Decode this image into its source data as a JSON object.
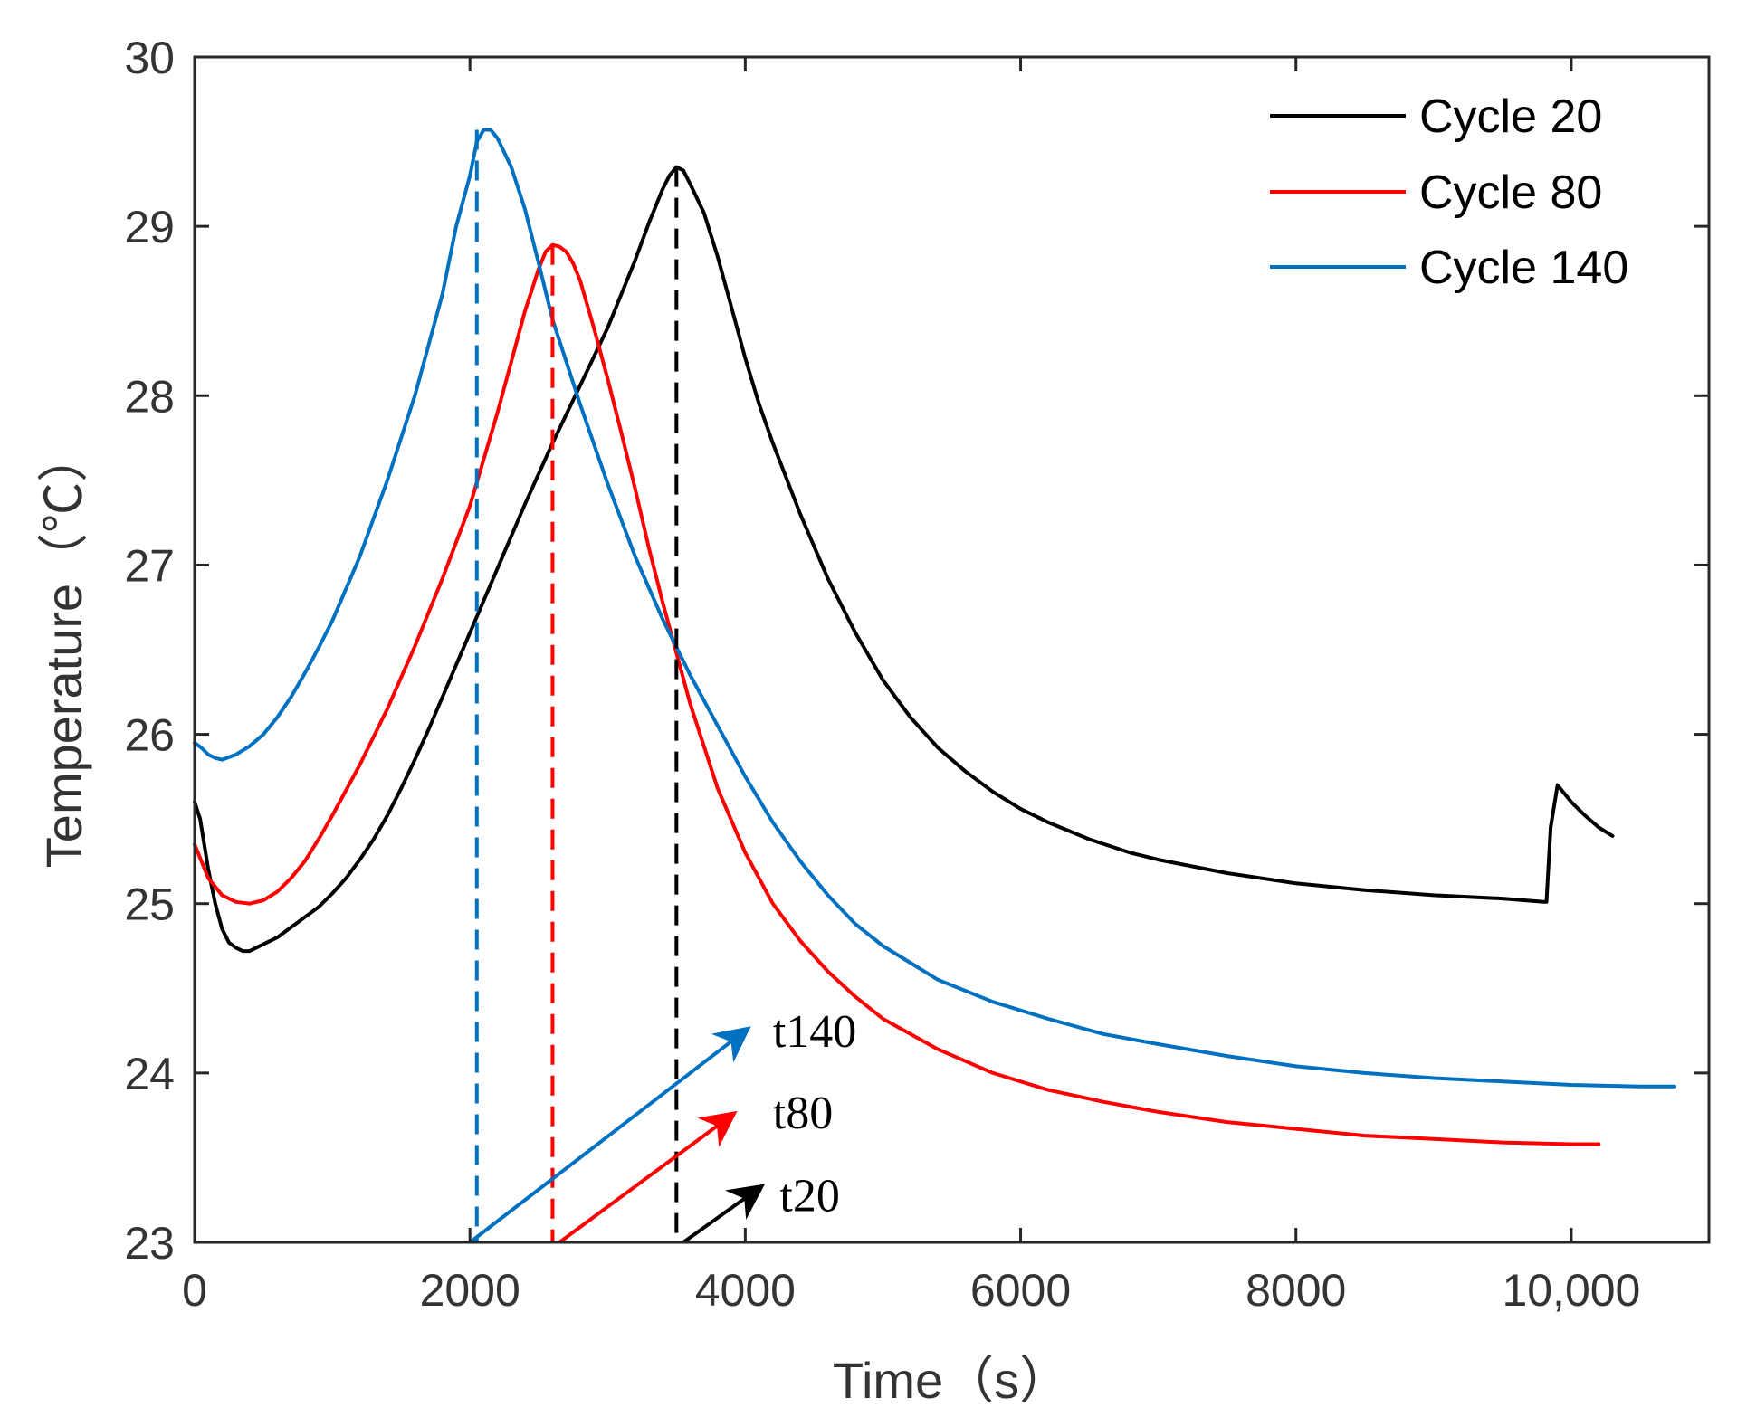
{
  "chart_data": {
    "type": "line",
    "title": "",
    "xlabel": "Time（s）",
    "ylabel": "Temperature（℃）",
    "xlim": [
      0,
      11000
    ],
    "ylim": [
      23,
      30
    ],
    "xticks": [
      0,
      2000,
      4000,
      6000,
      8000,
      10000
    ],
    "xtick_labels": [
      "0",
      "2000",
      "4000",
      "6000",
      "8000",
      "10,000"
    ],
    "yticks": [
      23,
      24,
      25,
      26,
      27,
      28,
      29,
      30
    ],
    "ytick_labels": [
      "23",
      "24",
      "25",
      "26",
      "27",
      "28",
      "29",
      "30"
    ],
    "grid": false,
    "legend_position": "top-right",
    "series": [
      {
        "name": "Cycle 20",
        "color": "#000000",
        "x": [
          0,
          40,
          100,
          150,
          200,
          250,
          300,
          350,
          400,
          500,
          600,
          700,
          800,
          900,
          1000,
          1100,
          1200,
          1300,
          1400,
          1500,
          1600,
          1700,
          1800,
          1900,
          2000,
          2200,
          2400,
          2600,
          2800,
          3000,
          3200,
          3300,
          3400,
          3450,
          3500,
          3550,
          3600,
          3700,
          3800,
          3900,
          4000,
          4100,
          4200,
          4400,
          4600,
          4800,
          5000,
          5200,
          5400,
          5600,
          5800,
          6000,
          6200,
          6500,
          6800,
          7000,
          7500,
          8000,
          8500,
          9000,
          9500,
          9800,
          9820,
          9850,
          9900,
          10000,
          10100,
          10200,
          10300
        ],
        "values": [
          25.6,
          25.5,
          25.2,
          25.0,
          24.85,
          24.77,
          24.74,
          24.72,
          24.72,
          24.76,
          24.8,
          24.86,
          24.92,
          24.98,
          25.06,
          25.15,
          25.26,
          25.38,
          25.52,
          25.68,
          25.85,
          26.03,
          26.22,
          26.41,
          26.6,
          26.98,
          27.36,
          27.72,
          28.06,
          28.4,
          28.8,
          29.02,
          29.22,
          29.3,
          29.35,
          29.33,
          29.25,
          29.08,
          28.82,
          28.52,
          28.22,
          27.95,
          27.72,
          27.3,
          26.92,
          26.6,
          26.32,
          26.1,
          25.92,
          25.78,
          25.66,
          25.56,
          25.48,
          25.38,
          25.3,
          25.26,
          25.18,
          25.12,
          25.08,
          25.05,
          25.03,
          25.01,
          25.01,
          25.45,
          25.7,
          25.6,
          25.52,
          25.45,
          25.4
        ]
      },
      {
        "name": "Cycle 80",
        "color": "#ff0000",
        "x": [
          0,
          50,
          100,
          200,
          300,
          400,
          500,
          600,
          700,
          800,
          900,
          1000,
          1200,
          1400,
          1600,
          1800,
          2000,
          2200,
          2300,
          2400,
          2500,
          2550,
          2600,
          2650,
          2700,
          2750,
          2800,
          2900,
          3000,
          3100,
          3200,
          3300,
          3400,
          3600,
          3800,
          4000,
          4200,
          4400,
          4600,
          4800,
          5000,
          5400,
          5800,
          6200,
          6600,
          7000,
          7500,
          8000,
          8500,
          9000,
          9500,
          10000,
          10200
        ],
        "values": [
          25.35,
          25.25,
          25.15,
          25.05,
          25.01,
          25.0,
          25.02,
          25.07,
          25.15,
          25.25,
          25.38,
          25.52,
          25.82,
          26.15,
          26.52,
          26.92,
          27.35,
          27.9,
          28.2,
          28.5,
          28.75,
          28.85,
          28.89,
          28.88,
          28.85,
          28.78,
          28.68,
          28.4,
          28.1,
          27.78,
          27.45,
          27.1,
          26.78,
          26.18,
          25.68,
          25.3,
          25.0,
          24.78,
          24.6,
          24.45,
          24.32,
          24.14,
          24.0,
          23.9,
          23.83,
          23.77,
          23.71,
          23.67,
          23.63,
          23.61,
          23.59,
          23.58,
          23.58
        ]
      },
      {
        "name": "Cycle 140",
        "color": "#0070c0",
        "x": [
          0,
          50,
          100,
          150,
          200,
          300,
          400,
          500,
          600,
          700,
          800,
          900,
          1000,
          1200,
          1400,
          1600,
          1800,
          1900,
          2000,
          2050,
          2100,
          2150,
          2200,
          2300,
          2400,
          2500,
          2600,
          2800,
          3000,
          3200,
          3400,
          3600,
          3800,
          4000,
          4200,
          4400,
          4600,
          4800,
          5000,
          5400,
          5800,
          6200,
          6600,
          7000,
          7500,
          8000,
          8500,
          9000,
          9500,
          10000,
          10500,
          10750
        ],
        "values": [
          25.95,
          25.92,
          25.88,
          25.86,
          25.85,
          25.88,
          25.93,
          26.0,
          26.1,
          26.22,
          26.36,
          26.51,
          26.67,
          27.05,
          27.5,
          28.0,
          28.6,
          29.0,
          29.3,
          29.5,
          29.57,
          29.57,
          29.52,
          29.35,
          29.1,
          28.78,
          28.45,
          27.95,
          27.48,
          27.05,
          26.68,
          26.35,
          26.05,
          25.75,
          25.48,
          25.25,
          25.05,
          24.88,
          24.75,
          24.55,
          24.42,
          24.32,
          24.23,
          24.17,
          24.1,
          24.04,
          24.0,
          23.97,
          23.95,
          23.93,
          23.92,
          23.92
        ]
      }
    ],
    "peak_markers": [
      {
        "series": "Cycle 140",
        "x": 2050,
        "y": 29.57,
        "color": "#0070c0"
      },
      {
        "series": "Cycle 80",
        "x": 2600,
        "y": 28.89,
        "color": "#ff0000"
      },
      {
        "series": "Cycle 20",
        "x": 3500,
        "y": 29.35,
        "color": "#000000"
      }
    ],
    "annotations": [
      {
        "text": "t140",
        "color": "#0070c0",
        "from": [
          2000,
          23.0
        ],
        "to": [
          4000,
          24.25
        ],
        "label_at": [
          4200,
          24.25
        ]
      },
      {
        "text": "t80",
        "color": "#ff0000",
        "from": [
          2650,
          23.0
        ],
        "to": [
          3900,
          23.75
        ],
        "label_at": [
          4200,
          23.77
        ]
      },
      {
        "text": "t20",
        "color": "#000000",
        "from": [
          3550,
          23.0
        ],
        "to": [
          4100,
          23.32
        ],
        "label_at": [
          4250,
          23.28
        ]
      }
    ]
  }
}
